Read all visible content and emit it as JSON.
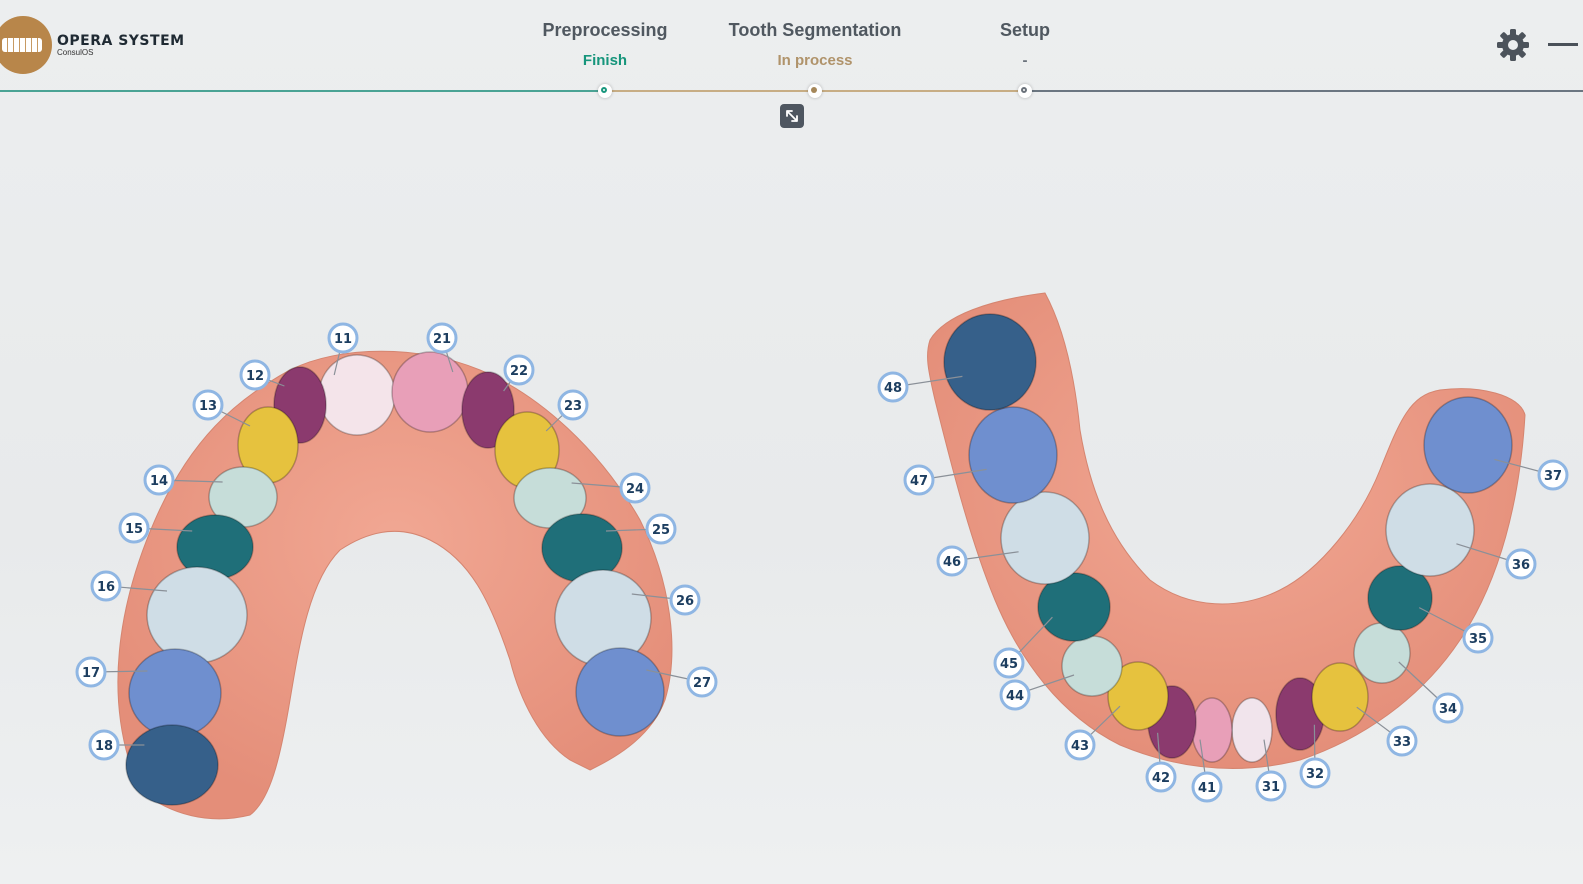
{
  "app": {
    "logo_title": "OPERA SYSTEM",
    "logo_subtitle": "ConsulOS"
  },
  "workflow": {
    "steps": [
      {
        "label": "Preprocessing",
        "status": "Finish",
        "state": "done",
        "status_color": "#16957b"
      },
      {
        "label": "Tooth Segmentation",
        "status": "In process",
        "state": "active",
        "status_color": "#b0936a"
      },
      {
        "label": "Setup",
        "status": "-",
        "state": "pending",
        "status_color": "#6a717a"
      }
    ]
  },
  "toolbar": {
    "settings_icon": "gear-icon",
    "minimize_icon": "minimize-icon",
    "expand_icon": "expand-arrows-icon"
  },
  "upper_arch": {
    "teeth": [
      {
        "number": "11",
        "color": "#f4e4ea"
      },
      {
        "number": "12",
        "color": "#8b3a6e"
      },
      {
        "number": "13",
        "color": "#e6c23e"
      },
      {
        "number": "14",
        "color": "#c6ddd9"
      },
      {
        "number": "15",
        "color": "#1f6f79"
      },
      {
        "number": "16",
        "color": "#cfdde6"
      },
      {
        "number": "17",
        "color": "#6f8fcf"
      },
      {
        "number": "18",
        "color": "#36608a"
      },
      {
        "number": "21",
        "color": "#e89fb8"
      },
      {
        "number": "22",
        "color": "#8b3a6e"
      },
      {
        "number": "23",
        "color": "#e6c23e"
      },
      {
        "number": "24",
        "color": "#c6ddd9"
      },
      {
        "number": "25",
        "color": "#1f6f79"
      },
      {
        "number": "26",
        "color": "#cfdde6"
      },
      {
        "number": "27",
        "color": "#6f8fcf"
      }
    ]
  },
  "lower_arch": {
    "teeth": [
      {
        "number": "31",
        "color": "#f1e4ec"
      },
      {
        "number": "32",
        "color": "#8b3a6e"
      },
      {
        "number": "33",
        "color": "#e6c23e"
      },
      {
        "number": "34",
        "color": "#c6ddd9"
      },
      {
        "number": "35",
        "color": "#1f6f79"
      },
      {
        "number": "36",
        "color": "#cfdde6"
      },
      {
        "number": "37",
        "color": "#6f8fcf"
      },
      {
        "number": "41",
        "color": "#e89fb8"
      },
      {
        "number": "42",
        "color": "#8b3a6e"
      },
      {
        "number": "43",
        "color": "#e6c23e"
      },
      {
        "number": "44",
        "color": "#c6ddd9"
      },
      {
        "number": "45",
        "color": "#1f6f79"
      },
      {
        "number": "46",
        "color": "#cfdde6"
      },
      {
        "number": "47",
        "color": "#6f8fcf"
      },
      {
        "number": "48",
        "color": "#36608a"
      }
    ]
  }
}
